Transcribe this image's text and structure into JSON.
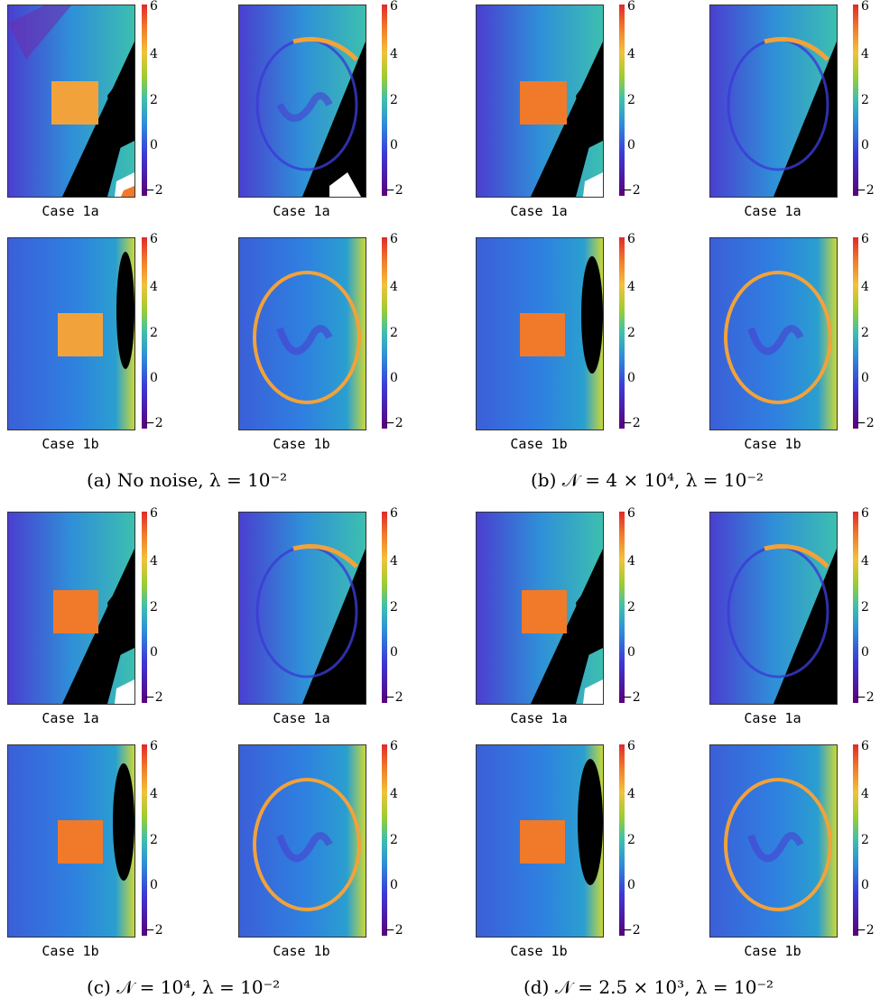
{
  "colorbar": {
    "max": "6",
    "t4": "4",
    "t2": "2",
    "t0": "0",
    "min": "−2"
  },
  "labels": {
    "case1a": "Case 1a",
    "case1b": "Case 1b"
  },
  "captions": {
    "a": "(a) No noise, λ = 10⁻²",
    "b": "(b) 𝒩 = 4 × 10⁴, λ = 10⁻²",
    "c": "(c) 𝒩 = 10⁴, λ = 10⁻²",
    "d": "(d) 𝒩 = 2.5 × 10³, λ = 10⁻²"
  },
  "colors": {
    "bg_blue": "#3c6fe0",
    "dark": "#000000",
    "hot": "#f07a2a",
    "yellow": "#e6d23a",
    "purple": "#5a007a"
  }
}
